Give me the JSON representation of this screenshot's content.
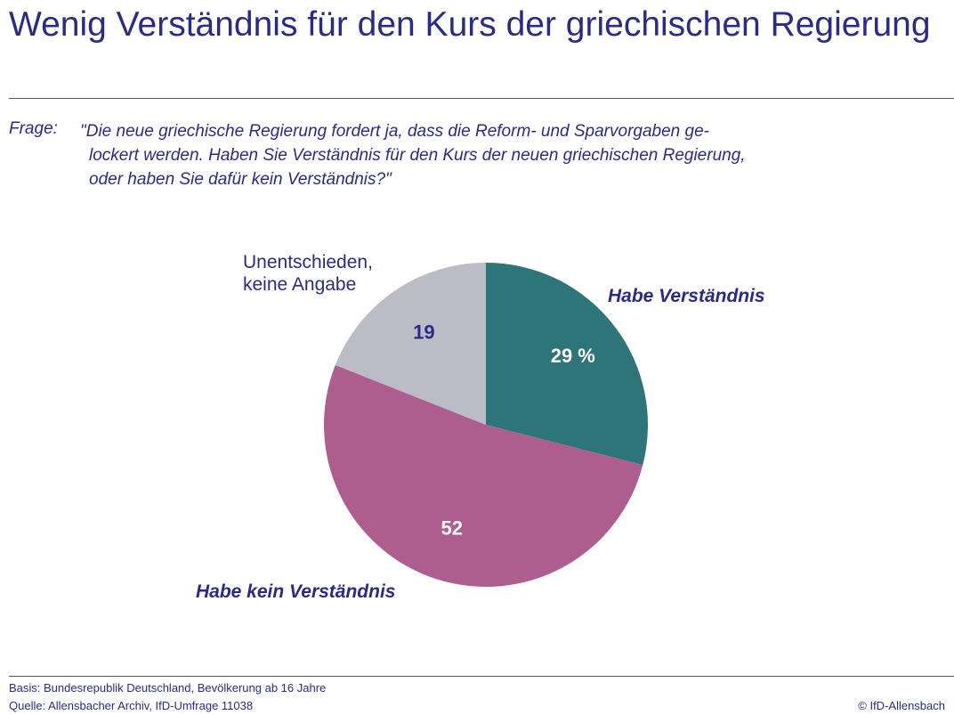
{
  "chart_data": {
    "type": "pie",
    "title": "Wenig Verständnis für den Kurs der griechischen Regierung",
    "question_label": "Frage:",
    "question_lines": [
      "\"Die neue griechische Regierung fordert ja, dass die Reform- und Sparvorgaben ge-",
      "lockert werden. Haben Sie Verständnis für den Kurs der neuen griechischen Regierung,",
      "oder haben Sie dafür kein Verständnis?\""
    ],
    "categories": [
      "Habe Verständnis",
      "Habe kein Verständnis",
      "Unentschieden, keine Angabe"
    ],
    "values": [
      29,
      52,
      19
    ],
    "value_labels": [
      "29 %",
      "52",
      "19"
    ],
    "colors": [
      "#2e7579",
      "#ad5e8e",
      "#bcbcc6"
    ],
    "label_colors": [
      "#ffffff",
      "#ffffff",
      "#2b2a8c"
    ],
    "basis": "Basis: Bundesrepublik Deutschland, Bevölkerung ab 16 Jahre",
    "source": "Quelle: Allensbacher Archiv, IfD-Umfrage 11038",
    "copyright": "© IfD-Allensbach"
  }
}
